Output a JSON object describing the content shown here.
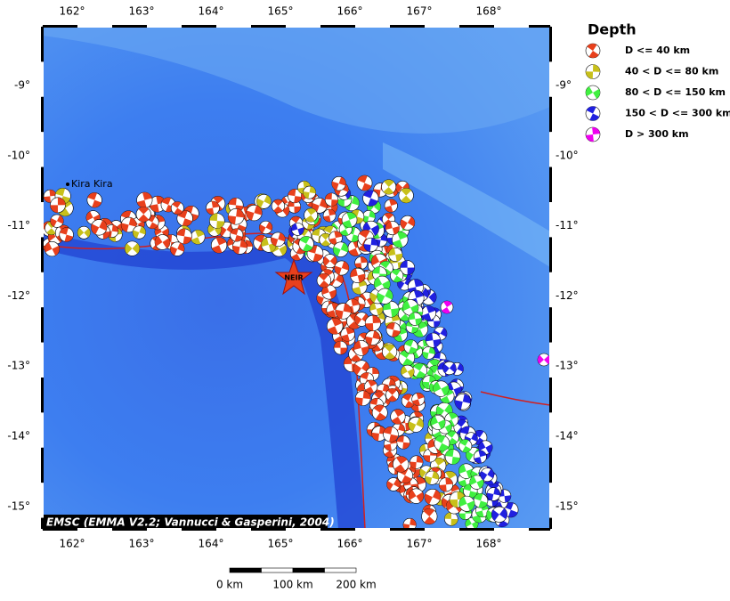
{
  "map": {
    "lon_labels": [
      "162°",
      "163°",
      "164°",
      "165°",
      "166°",
      "167°",
      "168°"
    ],
    "lat_labels": [
      "-9°",
      "-10°",
      "-11°",
      "-12°",
      "-13°",
      "-14°",
      "-15°"
    ],
    "places": [
      {
        "label": "Kira Kira"
      }
    ],
    "event": {
      "label": "NEIR"
    },
    "credit": "EMSC (EMMA V2.2; Vannucci & Gasperini, 2004)"
  },
  "legend": {
    "title": "Depth",
    "entries": [
      {
        "label": "D <= 40 km",
        "color": "#e8401c"
      },
      {
        "label": "40 < D <= 80 km",
        "color": "#c8c01a"
      },
      {
        "label": "80 < D <= 150 km",
        "color": "#40f040"
      },
      {
        "label": "150 < D <= 300 km",
        "color": "#2020e0"
      },
      {
        "label": "D > 300 km",
        "color": "#f000f0"
      }
    ]
  },
  "scale": {
    "labels": [
      "0 km",
      "100 km",
      "200 km"
    ]
  }
}
